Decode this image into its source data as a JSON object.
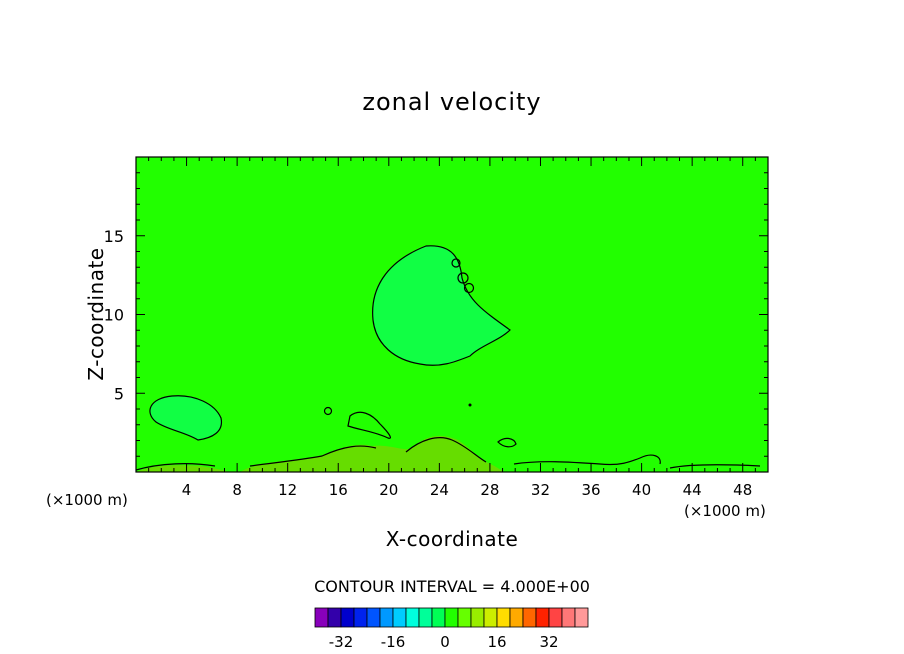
{
  "chart_data": {
    "type": "heatmap",
    "title": "zonal velocity",
    "xlabel": "X-coordinate",
    "ylabel": "Z-coordinate",
    "x_unit_left": "(×1000 m)",
    "x_unit_right": "(×1000 m)",
    "xlim": [
      0,
      50
    ],
    "ylim": [
      0,
      20
    ],
    "x_ticks": [
      4,
      8,
      12,
      16,
      20,
      24,
      28,
      32,
      36,
      40,
      44,
      48
    ],
    "y_ticks": [
      5,
      10,
      15
    ],
    "background_value_color": "#22ff00",
    "regions": [
      {
        "name": "upper-eddy",
        "color": "#11ff44",
        "value_range": [
          -4,
          0
        ]
      },
      {
        "name": "lower-left-eddy",
        "color": "#11ff44",
        "value_range": [
          -4,
          0
        ]
      },
      {
        "name": "near-surface-band",
        "color": "#66dd00",
        "value_range": [
          4,
          8
        ]
      }
    ],
    "contour_interval_text": "CONTOUR INTERVAL = 4.000E+00",
    "colorbar": {
      "colors": [
        "#8800bb",
        "#3300aa",
        "#0000cc",
        "#0022ee",
        "#0055ff",
        "#0099ff",
        "#00ccff",
        "#00ffdd",
        "#00ff99",
        "#00ff55",
        "#22ff00",
        "#66ff00",
        "#99ee00",
        "#ccee00",
        "#ffdd00",
        "#ffaa00",
        "#ff6600",
        "#ff2200",
        "#ff4444",
        "#ff7777",
        "#ff9999"
      ],
      "tick_labels": [
        "-32",
        "-16",
        "0",
        "16",
        "32"
      ],
      "tick_values": [
        -32,
        -16,
        0,
        16,
        32
      ],
      "min": -40,
      "max": 44
    }
  }
}
